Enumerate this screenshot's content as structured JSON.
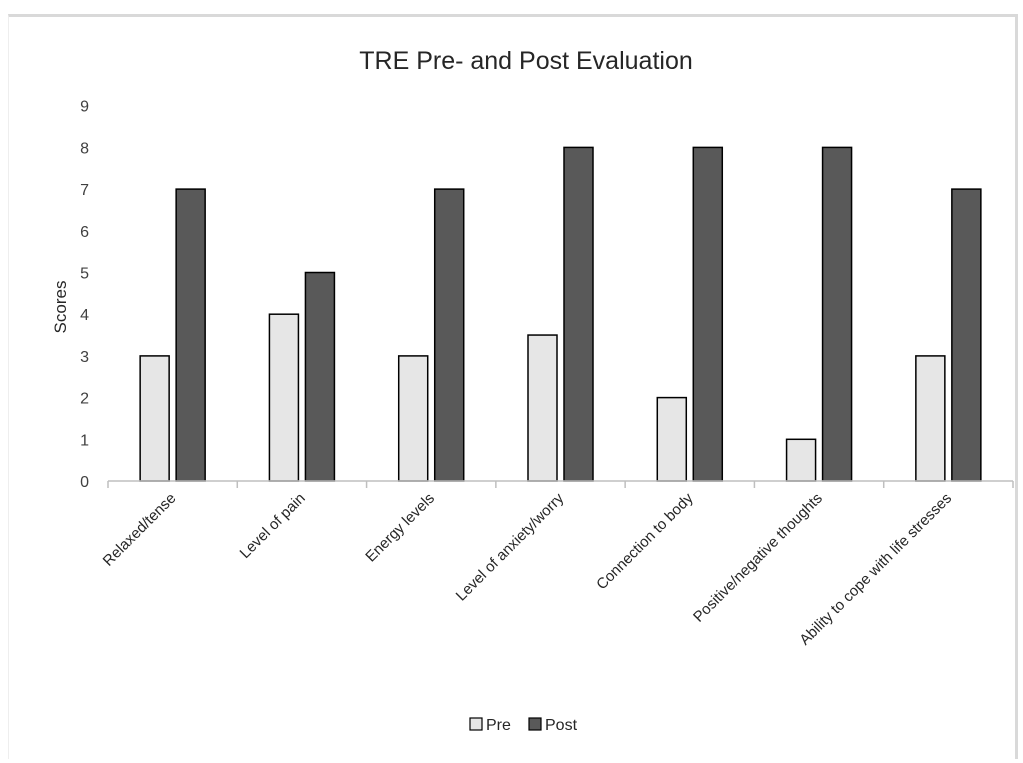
{
  "chart_data": {
    "type": "bar",
    "title": "TRE Pre- and Post Evaluation",
    "xlabel": "",
    "ylabel": "Scores",
    "ylim": [
      0,
      9
    ],
    "yticks": [
      0,
      1,
      2,
      3,
      4,
      5,
      6,
      7,
      8,
      9
    ],
    "categories": [
      "Relaxed/tense",
      "Level of pain",
      "Energy levels",
      "Level of anxiety/worry",
      "Connection to body",
      "Positive/negative thoughts",
      "Ability to cope with life stresses"
    ],
    "series": [
      {
        "name": "Pre",
        "color": "#e6e6e6",
        "values": [
          3,
          4,
          3,
          3.5,
          2,
          1,
          3
        ]
      },
      {
        "name": "Post",
        "color": "#595959",
        "values": [
          7,
          5,
          7,
          8,
          8,
          8,
          7
        ]
      }
    ],
    "grid": false,
    "legend_position": "bottom"
  }
}
